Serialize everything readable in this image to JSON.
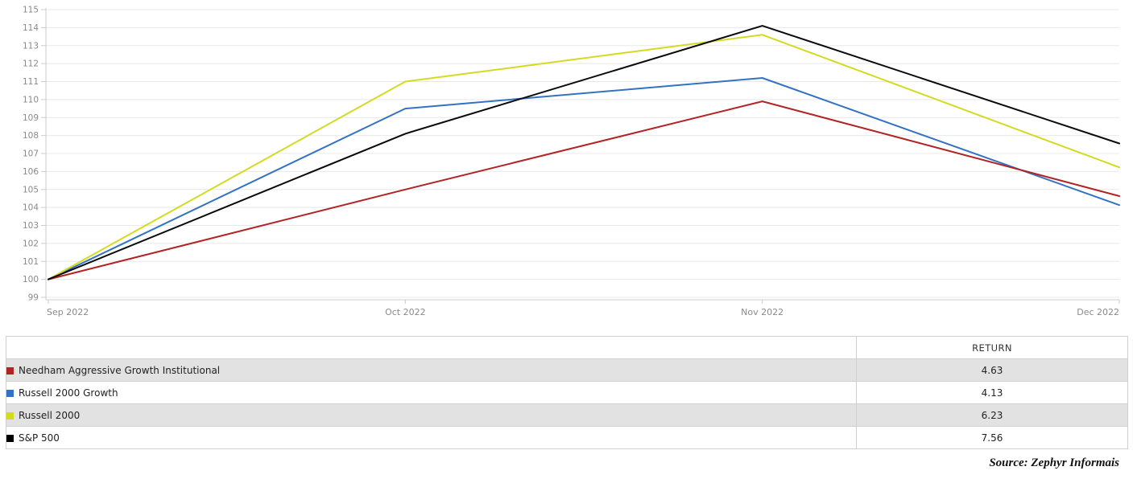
{
  "chart_data": {
    "type": "line",
    "x_labels": [
      "Sep 2022",
      "Oct 2022",
      "Nov 2022",
      "Dec 2022"
    ],
    "ylim": [
      99,
      115
    ],
    "ytick_step": 1,
    "grid": "horizontal",
    "baseline_value": 100,
    "legend_position": "table-below",
    "series": [
      {
        "name": "Needham Aggressive Growth Institutional",
        "color": "#b22424",
        "values": [
          100,
          105.0,
          109.9,
          104.63
        ]
      },
      {
        "name": "Russell 2000 Growth",
        "color": "#3372c2",
        "values": [
          100,
          109.5,
          111.2,
          104.13
        ]
      },
      {
        "name": "Russell 2000",
        "color": "#d2db20",
        "values": [
          100,
          111.0,
          113.6,
          106.23
        ]
      },
      {
        "name": "S&P 500",
        "color": "#0a0a0a",
        "values": [
          100,
          108.1,
          114.1,
          107.56
        ]
      }
    ]
  },
  "table": {
    "return_header": "RETURN",
    "rows": [
      {
        "name": "Needham Aggressive Growth Institutional",
        "return": "4.63",
        "color": "#b22424"
      },
      {
        "name": "Russell 2000 Growth",
        "return": "4.13",
        "color": "#3372c2"
      },
      {
        "name": "Russell 2000",
        "return": "6.23",
        "color": "#d2db20"
      },
      {
        "name": "S&P 500",
        "return": "7.56",
        "color": "#000000"
      }
    ]
  },
  "source_note": "Source: Zephyr Informais",
  "style": {
    "grid_color": "#e8e8e8",
    "axis_color": "#cccccc",
    "tick_label_color": "#8a8a8a"
  }
}
